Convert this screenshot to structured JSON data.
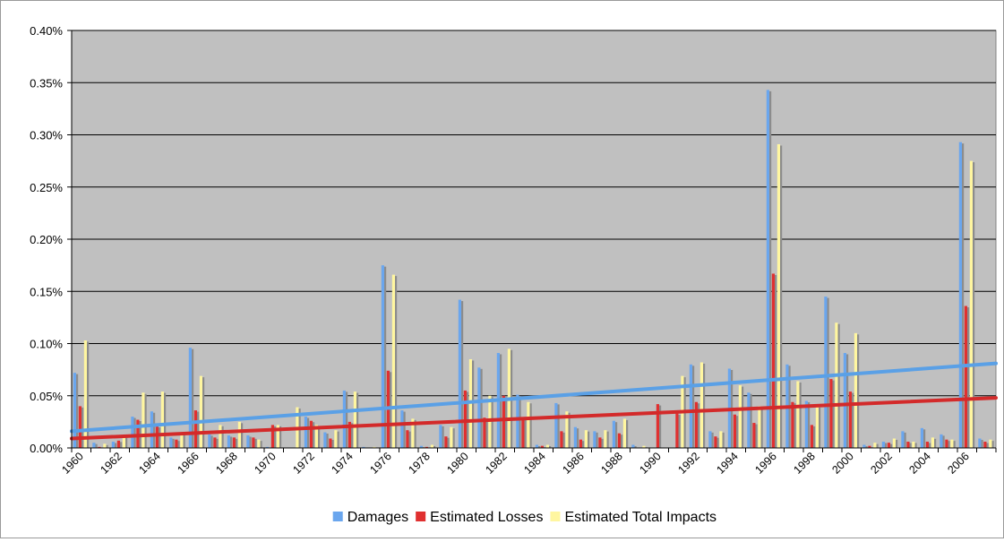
{
  "chart_data": {
    "type": "bar",
    "title": "",
    "xlabel": "",
    "ylabel": "",
    "ylim": [
      0,
      0.4
    ],
    "yticks": [
      "0.00%",
      "0.05%",
      "0.10%",
      "0.15%",
      "0.20%",
      "0.25%",
      "0.30%",
      "0.35%",
      "0.40%"
    ],
    "grid": true,
    "legend_position": "bottom",
    "categories": [
      "1960",
      "1961",
      "1962",
      "1963",
      "1964",
      "1965",
      "1966",
      "1967",
      "1968",
      "1969",
      "1970",
      "1971",
      "1972",
      "1973",
      "1974",
      "1975",
      "1976",
      "1977",
      "1978",
      "1979",
      "1980",
      "1981",
      "1982",
      "1983",
      "1984",
      "1985",
      "1986",
      "1987",
      "1988",
      "1989",
      "1990",
      "1991",
      "1992",
      "1993",
      "1994",
      "1995",
      "1996",
      "1997",
      "1998",
      "1999",
      "2000",
      "2001",
      "2002",
      "2003",
      "2004",
      "2005",
      "2006",
      "2007"
    ],
    "xtick_labels": [
      "1960",
      "1962",
      "1964",
      "1966",
      "1968",
      "1970",
      "1972",
      "1974",
      "1976",
      "1978",
      "1980",
      "1982",
      "1984",
      "1986",
      "1988",
      "1990",
      "1992",
      "1994",
      "1996",
      "1998",
      "2000",
      "2002",
      "2004",
      "2006"
    ],
    "series": [
      {
        "name": "Damages",
        "color": "#6aa6ee",
        "values": [
          0.072,
          0.005,
          0.006,
          0.03,
          0.035,
          0.01,
          0.096,
          0.013,
          0.012,
          0.012,
          0.001,
          0.0,
          0.03,
          0.015,
          0.055,
          0.001,
          0.175,
          0.036,
          0.002,
          0.022,
          0.142,
          0.077,
          0.091,
          0.051,
          0.003,
          0.043,
          0.02,
          0.016,
          0.026,
          0.003,
          0.0,
          0.0,
          0.08,
          0.016,
          0.076,
          0.053,
          0.343,
          0.08,
          0.045,
          0.145,
          0.091,
          0.003,
          0.006,
          0.016,
          0.019,
          0.013,
          0.293,
          0.009
        ]
      },
      {
        "name": "Estimated Losses",
        "color": "#e03030",
        "values": [
          0.04,
          0.001,
          0.007,
          0.027,
          0.021,
          0.008,
          0.036,
          0.01,
          0.01,
          0.01,
          0.022,
          0.0,
          0.026,
          0.009,
          0.025,
          0.0,
          0.074,
          0.017,
          0.001,
          0.011,
          0.055,
          0.029,
          0.05,
          0.029,
          0.002,
          0.016,
          0.008,
          0.01,
          0.014,
          0.0,
          0.042,
          0.033,
          0.044,
          0.011,
          0.032,
          0.024,
          0.167,
          0.044,
          0.022,
          0.066,
          0.054,
          0.002,
          0.005,
          0.006,
          0.006,
          0.008,
          0.136,
          0.006
        ]
      },
      {
        "name": "Estimated Total Impacts",
        "color": "#fff6a0",
        "values": [
          0.103,
          0.004,
          0.011,
          0.053,
          0.054,
          0.014,
          0.069,
          0.022,
          0.025,
          0.008,
          0.022,
          0.039,
          0.022,
          0.017,
          0.054,
          0.001,
          0.166,
          0.028,
          0.003,
          0.02,
          0.085,
          0.05,
          0.095,
          0.044,
          0.003,
          0.035,
          0.017,
          0.017,
          0.028,
          0.002,
          0.0,
          0.069,
          0.082,
          0.016,
          0.06,
          0.04,
          0.291,
          0.064,
          0.04,
          0.12,
          0.11,
          0.005,
          0.009,
          0.006,
          0.01,
          0.008,
          0.275,
          0.008
        ]
      }
    ],
    "shadow_color": "#8c8c8c",
    "trendlines": [
      {
        "series": "Damages",
        "color": "#5aa0e6",
        "start": 0.016,
        "end": 0.081
      },
      {
        "series": "Estimated Losses",
        "color": "#d32a2a",
        "start": 0.009,
        "end": 0.048
      }
    ]
  }
}
